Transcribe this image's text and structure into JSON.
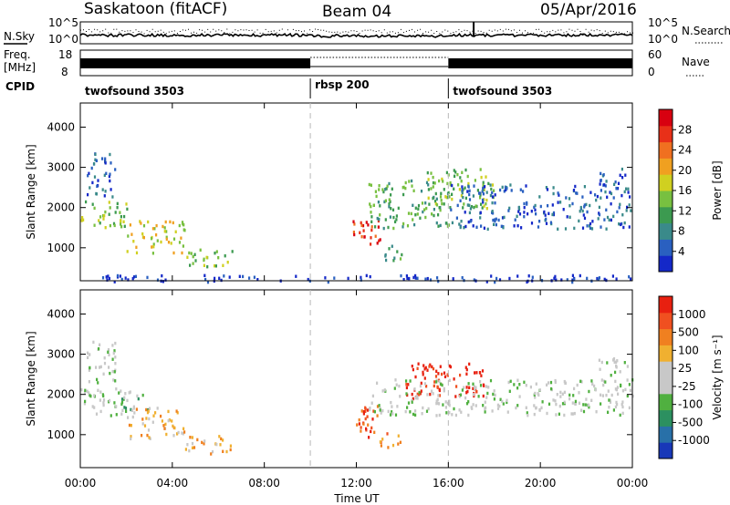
{
  "header": {
    "site": "Saskatoon (fitACF)",
    "beam": "Beam 04",
    "date": "05/Apr/2016"
  },
  "noise_panel": {
    "left_label": "N.Sky",
    "right_label": "N.Search",
    "left_ticks": [
      "10^5",
      "10^0"
    ],
    "right_ticks": [
      "10^5",
      "10^0"
    ]
  },
  "freq_panel": {
    "left_label_line1": "Freq.",
    "left_label_line2": "[MHz]",
    "left_ticks": [
      "18",
      "8"
    ],
    "right_label": "Nave",
    "right_ticks": [
      "60",
      "0"
    ]
  },
  "cpid": {
    "label": "CPID",
    "segments": [
      {
        "name": "twofsound 3503",
        "start_h": 0,
        "end_h": 10
      },
      {
        "name": "rbsp 200",
        "start_h": 10,
        "end_h": 16
      },
      {
        "name": "twofsound 3503",
        "start_h": 16,
        "end_h": 24
      }
    ]
  },
  "chart_data": [
    {
      "type": "heatmap",
      "quantity": "Power",
      "ylabel": "Slant Range [km]",
      "colorbar_label": "Power [dB]",
      "colorbar_ticks": [
        "28",
        "24",
        "20",
        "16",
        "12",
        "8",
        "4"
      ],
      "colors": [
        "#1428c8",
        "#2a60c0",
        "#3a8a8a",
        "#3c9a50",
        "#78c040",
        "#d0d020",
        "#f0a020",
        "#f07020",
        "#e83018",
        "#d80010"
      ],
      "ylim": [
        180,
        4600
      ],
      "y_ticks": [
        1000,
        2000,
        3000,
        4000
      ],
      "xlim": [
        0,
        24
      ],
      "vertical_markers_h": [
        10,
        16
      ],
      "regions": [
        {
          "t0": 0.0,
          "t1": 2.0,
          "r0": 1500,
          "r1": 2200,
          "level": 4
        },
        {
          "t0": 2.0,
          "t1": 4.5,
          "r0": 900,
          "r1": 1700,
          "level": 5
        },
        {
          "t0": 4.5,
          "t1": 6.6,
          "r0": 550,
          "r1": 1000,
          "level": 4
        },
        {
          "t0": 0.2,
          "t1": 1.5,
          "r0": 2300,
          "r1": 3400,
          "level": 1
        },
        {
          "t0": 11.8,
          "t1": 13.0,
          "r0": 1000,
          "r1": 1800,
          "level": 8
        },
        {
          "t0": 13.0,
          "t1": 14.0,
          "r0": 700,
          "r1": 1100,
          "level": 3
        },
        {
          "t0": 12.5,
          "t1": 16.0,
          "r0": 1500,
          "r1": 2700,
          "level": 3
        },
        {
          "t0": 15.0,
          "t1": 18.0,
          "r0": 2000,
          "r1": 3000,
          "level": 4
        },
        {
          "t0": 16.0,
          "t1": 24.0,
          "r0": 1500,
          "r1": 2600,
          "level": 1
        },
        {
          "t0": 22.5,
          "t1": 23.8,
          "r0": 2500,
          "r1": 3000,
          "level": 1
        },
        {
          "t0": 0.0,
          "t1": 24.0,
          "r0": 180,
          "r1": 350,
          "level": 0
        }
      ]
    },
    {
      "type": "heatmap",
      "quantity": "Velocity",
      "ylabel": "Slant Range [km]",
      "colorbar_label": "Velocity [m s⁻¹]",
      "colorbar_ticks": [
        "1000",
        "500",
        "100",
        "25",
        "-25",
        "-100",
        "-500",
        "-1000"
      ],
      "colors": [
        "#1838b8",
        "#2870a8",
        "#2c9060",
        "#50b040",
        "#c8c8c8",
        "#c8c8c8",
        "#f0b030",
        "#f08020",
        "#f05020",
        "#e82010"
      ],
      "ylim": [
        180,
        4600
      ],
      "y_ticks": [
        1000,
        2000,
        3000,
        4000
      ],
      "xlim": [
        0,
        24
      ],
      "vertical_markers_h": [
        10,
        16
      ],
      "regions": [
        {
          "t0": 0.0,
          "t1": 2.0,
          "r0": 1500,
          "r1": 2200,
          "level": 4
        },
        {
          "t0": 1.5,
          "t1": 3.0,
          "r0": 1600,
          "r1": 2100,
          "level": 3
        },
        {
          "t0": 2.0,
          "t1": 4.5,
          "r0": 900,
          "r1": 1700,
          "level": 6
        },
        {
          "t0": 4.5,
          "t1": 6.6,
          "r0": 550,
          "r1": 1000,
          "level": 6
        },
        {
          "t0": 0.2,
          "t1": 1.5,
          "r0": 2300,
          "r1": 3400,
          "level": 4
        },
        {
          "t0": 11.8,
          "t1": 13.0,
          "r0": 900,
          "r1": 1800,
          "level": 8
        },
        {
          "t0": 13.0,
          "t1": 14.0,
          "r0": 700,
          "r1": 1100,
          "level": 7
        },
        {
          "t0": 14.0,
          "t1": 17.5,
          "r0": 1900,
          "r1": 2800,
          "level": 9
        },
        {
          "t0": 12.5,
          "t1": 24.0,
          "r0": 1500,
          "r1": 2400,
          "level": 4
        },
        {
          "t0": 22.5,
          "t1": 23.8,
          "r0": 2500,
          "r1": 3000,
          "level": 4
        }
      ]
    }
  ],
  "x_axis": {
    "label": "Time UT",
    "ticks": [
      "00:00",
      "04:00",
      "08:00",
      "12:00",
      "16:00",
      "20:00",
      "00:00"
    ]
  }
}
